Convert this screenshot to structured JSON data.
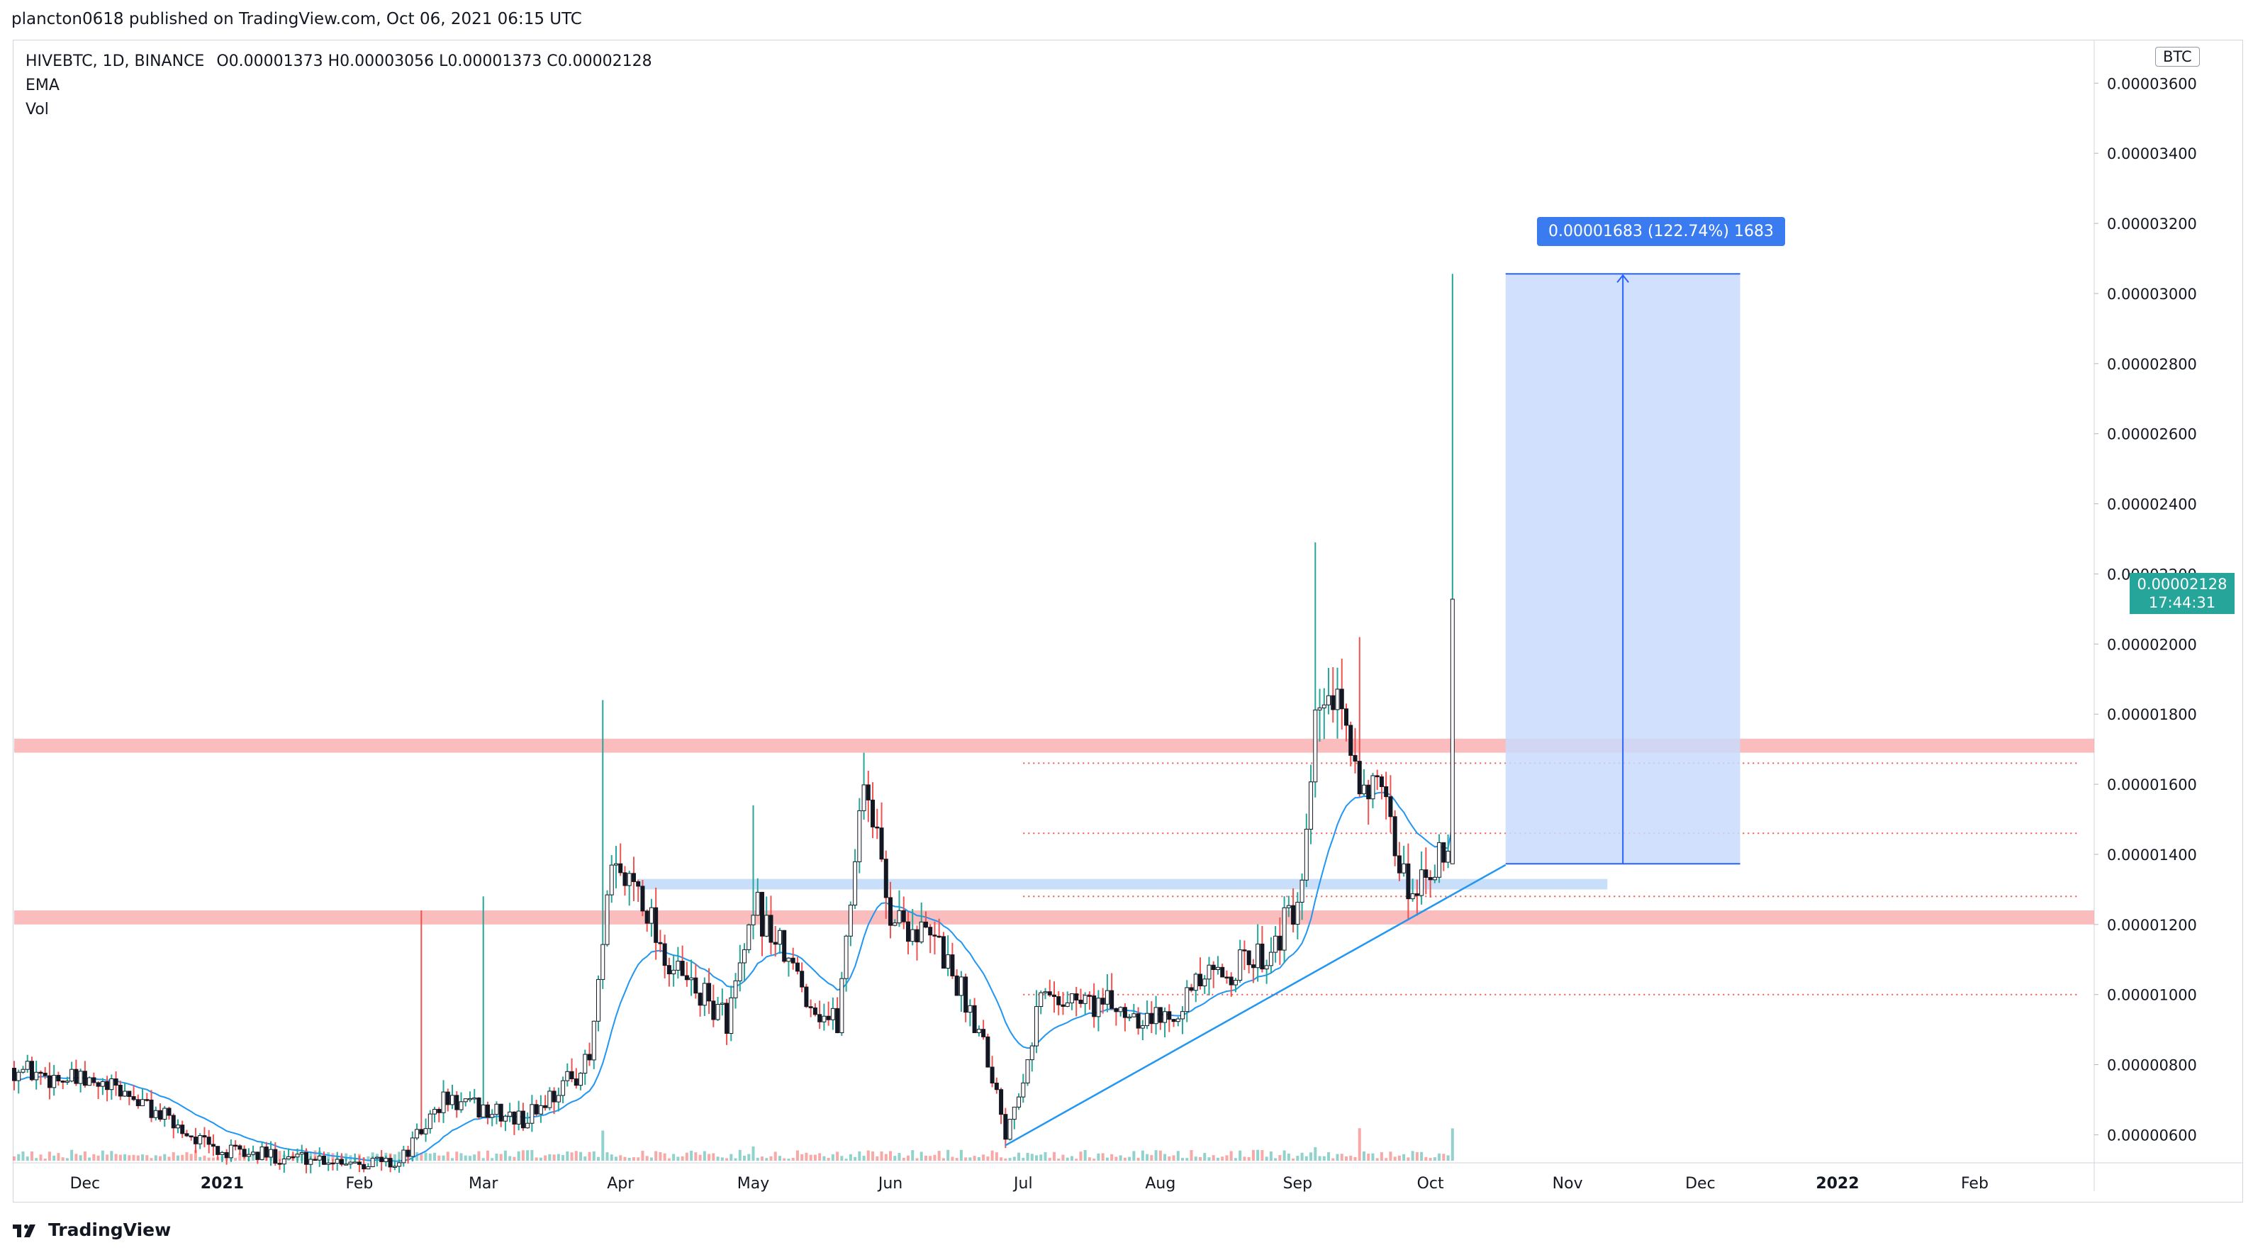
{
  "header": {
    "published": "plancton0618 published on TradingView.com, Oct 06, 2021 06:15 UTC"
  },
  "legend": {
    "symbol": "HIVEBTC, 1D, BINANCE",
    "ohlc": "O0.00001373 H0.00003056 L0.00001373 C0.00002128",
    "indicator_1": "EMA",
    "indicator_2": "Vol"
  },
  "price_axis": {
    "unit": "BTC",
    "last_price": "0.00002128",
    "countdown": "17:44:31"
  },
  "measure_tool": {
    "label": "0.00001683 (122.74%) 1683"
  },
  "footer": {
    "brand": "TradingView"
  },
  "colors": {
    "up": "#26a69a",
    "down": "#ef5350",
    "ema": "#2196f3",
    "resistance": "#f8a5a5",
    "measure_fill": "#c9dbfb",
    "measure_line": "#2962ff"
  },
  "chart_data": {
    "type": "candlestick",
    "symbol": "HIVEBTC",
    "interval": "1D",
    "exchange": "BINANCE",
    "y_axis_unit": "BTC",
    "ylim": [
      5.2e-06,
      3.72e-05
    ],
    "y_ticks": [
      "0.00000600",
      "0.00000800",
      "0.00001000",
      "0.00001200",
      "0.00001400",
      "0.00001600",
      "0.00001800",
      "0.00002000",
      "0.00002200",
      "0.00002400",
      "0.00002600",
      "0.00002800",
      "0.00003000",
      "0.00003200",
      "0.00003400",
      "0.00003600"
    ],
    "x_ticks": [
      "Dec",
      "2021",
      "Feb",
      "Mar",
      "Apr",
      "May",
      "Jun",
      "Jul",
      "Aug",
      "Sep",
      "Oct",
      "Nov",
      "Dec",
      "2022",
      "Feb"
    ],
    "x_range": [
      "2020-11-15",
      "2022-02-28"
    ],
    "last_candle": {
      "date": "2021-10-06",
      "open": 1.373e-05,
      "high": 3.056e-05,
      "low": 1.373e-05,
      "close": 2.128e-05
    },
    "key_points": [
      {
        "date": "2020-11-15",
        "close": 7.9e-06
      },
      {
        "date": "2020-12-10",
        "close": 7.2e-06
      },
      {
        "date": "2020-12-31",
        "close": 5.5e-06
      },
      {
        "date": "2021-02-10",
        "close": 5.2e-06
      },
      {
        "date": "2021-02-20",
        "close": 7e-06
      },
      {
        "date": "2021-03-10",
        "close": 6.4e-06
      },
      {
        "date": "2021-03-25",
        "close": 8.1e-06
      },
      {
        "date": "2021-03-30",
        "close": 1.34e-05
      },
      {
        "date": "2021-04-05",
        "close": 1.32e-05
      },
      {
        "date": "2021-04-12",
        "close": 1.08e-05
      },
      {
        "date": "2021-04-25",
        "close": 9.3e-06
      },
      {
        "date": "2021-05-02",
        "close": 1.24e-05
      },
      {
        "date": "2021-05-15",
        "close": 9.6e-06
      },
      {
        "date": "2021-05-20",
        "close": 9.2e-06
      },
      {
        "date": "2021-05-26",
        "close": 1.64e-05
      },
      {
        "date": "2021-06-01",
        "close": 1.23e-05
      },
      {
        "date": "2021-06-12",
        "close": 1.14e-05
      },
      {
        "date": "2021-06-22",
        "close": 8.8e-06
      },
      {
        "date": "2021-06-27",
        "close": 6.1e-06
      },
      {
        "date": "2021-07-01",
        "close": 7.8e-06
      },
      {
        "date": "2021-07-05",
        "close": 1e-05
      },
      {
        "date": "2021-07-20",
        "close": 9.7e-06
      },
      {
        "date": "2021-08-01",
        "close": 9.3e-06
      },
      {
        "date": "2021-08-10",
        "close": 1.03e-05
      },
      {
        "date": "2021-08-25",
        "close": 1.12e-05
      },
      {
        "date": "2021-09-02",
        "close": 1.27e-05
      },
      {
        "date": "2021-09-05",
        "close": 1.75e-05
      },
      {
        "date": "2021-09-08",
        "close": 1.86e-05
      },
      {
        "date": "2021-09-14",
        "close": 1.66e-05
      },
      {
        "date": "2021-09-20",
        "close": 1.54e-05
      },
      {
        "date": "2021-09-26",
        "close": 1.3e-05
      },
      {
        "date": "2021-10-01",
        "close": 1.38e-05
      },
      {
        "date": "2021-10-05",
        "close": 1.37e-05
      },
      {
        "date": "2021-10-06",
        "close": 2.128e-05
      }
    ],
    "wick_highs": [
      {
        "date": "2021-02-15",
        "high": 1.24e-05
      },
      {
        "date": "2021-03-01",
        "high": 1.28e-05
      },
      {
        "date": "2021-03-28",
        "high": 1.84e-05
      },
      {
        "date": "2021-05-01",
        "high": 1.54e-05
      },
      {
        "date": "2021-05-26",
        "high": 1.69e-05
      },
      {
        "date": "2021-09-05",
        "high": 2.29e-05
      },
      {
        "date": "2021-09-15",
        "high": 2.02e-05
      },
      {
        "date": "2021-10-06",
        "high": 3.056e-05
      }
    ],
    "support_resistance_zones": [
      {
        "from": 1.69e-05,
        "to": 1.73e-05
      },
      {
        "from": 1.2e-05,
        "to": 1.24e-05
      }
    ],
    "demand_band": {
      "from": 1.3e-05,
      "to": 1.33e-05
    },
    "dotted_levels": [
      1.66e-05,
      1.46e-05,
      1.28e-05,
      1e-05
    ],
    "trendline": [
      {
        "date": "2021-06-27",
        "value": 5.7e-06
      },
      {
        "date": "2021-10-18",
        "value": 1.37e-05
      }
    ],
    "measure": {
      "from_value": 1.373e-05,
      "to_value": 3.056e-05,
      "from_date": "2021-10-18",
      "to_date": "2021-12-10"
    }
  }
}
